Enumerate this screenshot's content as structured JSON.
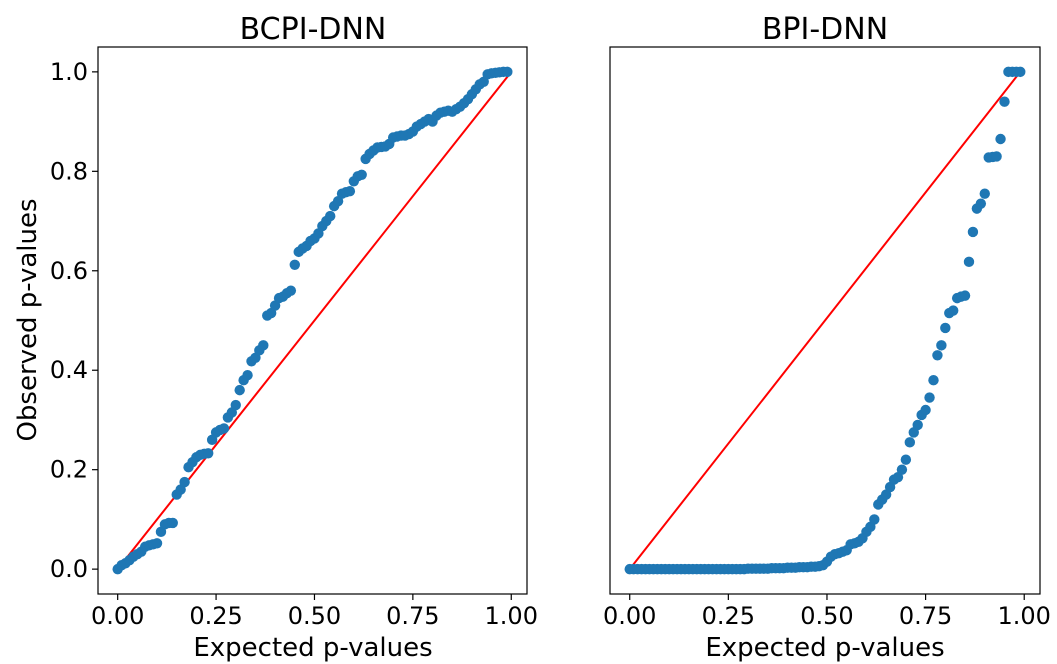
{
  "chart_data": [
    {
      "type": "scatter",
      "title": "BCPI-DNN",
      "xlabel": "Expected p-values",
      "ylabel": "Observed p-values",
      "xlim": [
        -0.05,
        1.04
      ],
      "ylim": [
        -0.05,
        1.05
      ],
      "xticks": [
        "0.00",
        "0.25",
        "0.50",
        "0.75",
        "1.00"
      ],
      "yticks": [
        "0.0",
        "0.2",
        "0.4",
        "0.6",
        "0.8",
        "1.0"
      ],
      "colors": {
        "points": "#1f77b4",
        "reference_line": "#ff0000"
      },
      "reference_line": {
        "x": [
          0,
          1
        ],
        "y": [
          0,
          1
        ]
      },
      "series": [
        {
          "x": [
            0.0,
            0.01,
            0.02,
            0.03,
            0.04,
            0.05,
            0.06,
            0.07,
            0.08,
            0.09,
            0.1,
            0.11,
            0.12,
            0.13,
            0.14,
            0.15,
            0.16,
            0.17,
            0.18,
            0.19,
            0.2,
            0.21,
            0.22,
            0.23,
            0.24,
            0.25,
            0.26,
            0.27,
            0.28,
            0.29,
            0.3,
            0.31,
            0.32,
            0.33,
            0.34,
            0.35,
            0.36,
            0.37,
            0.38,
            0.39,
            0.4,
            0.41,
            0.42,
            0.43,
            0.44,
            0.45,
            0.46,
            0.47,
            0.48,
            0.49,
            0.5,
            0.51,
            0.52,
            0.53,
            0.54,
            0.55,
            0.56,
            0.57,
            0.58,
            0.59,
            0.6,
            0.61,
            0.62,
            0.63,
            0.64,
            0.65,
            0.66,
            0.67,
            0.68,
            0.69,
            0.7,
            0.71,
            0.72,
            0.73,
            0.74,
            0.75,
            0.76,
            0.77,
            0.78,
            0.79,
            0.8,
            0.81,
            0.82,
            0.83,
            0.84,
            0.85,
            0.86,
            0.87,
            0.88,
            0.89,
            0.9,
            0.91,
            0.92,
            0.93,
            0.94,
            0.95,
            0.96,
            0.97,
            0.98,
            0.99
          ],
          "y": [
            0.0,
            0.008,
            0.012,
            0.018,
            0.025,
            0.03,
            0.035,
            0.045,
            0.048,
            0.05,
            0.052,
            0.075,
            0.09,
            0.093,
            0.093,
            0.15,
            0.16,
            0.175,
            0.205,
            0.215,
            0.225,
            0.23,
            0.232,
            0.233,
            0.26,
            0.275,
            0.28,
            0.283,
            0.305,
            0.315,
            0.33,
            0.36,
            0.38,
            0.39,
            0.418,
            0.425,
            0.44,
            0.45,
            0.51,
            0.515,
            0.53,
            0.545,
            0.548,
            0.555,
            0.56,
            0.612,
            0.638,
            0.645,
            0.65,
            0.66,
            0.665,
            0.675,
            0.69,
            0.7,
            0.71,
            0.73,
            0.74,
            0.755,
            0.758,
            0.76,
            0.78,
            0.79,
            0.793,
            0.825,
            0.835,
            0.842,
            0.848,
            0.849,
            0.85,
            0.855,
            0.868,
            0.87,
            0.872,
            0.872,
            0.875,
            0.88,
            0.89,
            0.895,
            0.9,
            0.905,
            0.9,
            0.912,
            0.918,
            0.92,
            0.922,
            0.92,
            0.925,
            0.93,
            0.937,
            0.945,
            0.955,
            0.965,
            0.975,
            0.98,
            0.995,
            0.997,
            0.998,
            0.999,
            1.0,
            1.0
          ]
        }
      ]
    },
    {
      "type": "scatter",
      "title": "BPI-DNN",
      "xlabel": "Expected p-values",
      "ylabel": "",
      "xlim": [
        -0.05,
        1.04
      ],
      "ylim": [
        -0.05,
        1.05
      ],
      "xticks": [
        "0.00",
        "0.25",
        "0.50",
        "0.75",
        "1.00"
      ],
      "yticks": [],
      "colors": {
        "points": "#1f77b4",
        "reference_line": "#ff0000"
      },
      "reference_line": {
        "x": [
          0,
          0.99
        ],
        "y": [
          0,
          1.0
        ]
      },
      "series": [
        {
          "x": [
            0.0,
            0.01,
            0.02,
            0.03,
            0.04,
            0.05,
            0.06,
            0.07,
            0.08,
            0.09,
            0.1,
            0.11,
            0.12,
            0.13,
            0.14,
            0.15,
            0.16,
            0.17,
            0.18,
            0.19,
            0.2,
            0.21,
            0.22,
            0.23,
            0.24,
            0.25,
            0.26,
            0.27,
            0.28,
            0.29,
            0.3,
            0.31,
            0.32,
            0.33,
            0.34,
            0.35,
            0.36,
            0.37,
            0.38,
            0.39,
            0.4,
            0.41,
            0.42,
            0.43,
            0.44,
            0.45,
            0.46,
            0.47,
            0.48,
            0.49,
            0.5,
            0.51,
            0.52,
            0.53,
            0.54,
            0.55,
            0.56,
            0.57,
            0.58,
            0.59,
            0.6,
            0.61,
            0.62,
            0.63,
            0.64,
            0.65,
            0.66,
            0.67,
            0.68,
            0.69,
            0.7,
            0.71,
            0.72,
            0.73,
            0.74,
            0.75,
            0.76,
            0.77,
            0.78,
            0.79,
            0.8,
            0.81,
            0.82,
            0.83,
            0.84,
            0.85,
            0.86,
            0.87,
            0.88,
            0.89,
            0.9,
            0.91,
            0.92,
            0.93,
            0.94,
            0.95,
            0.96,
            0.97,
            0.98,
            0.99
          ],
          "y": [
            0.0,
            0.0,
            0.0,
            0.0,
            0.0,
            0.0,
            0.0,
            0.0,
            0.0,
            0.0,
            0.0,
            0.0,
            0.0,
            0.0,
            0.0,
            0.0,
            0.0,
            0.0,
            0.0,
            0.0,
            0.0,
            0.0,
            0.0,
            0.0,
            0.0,
            0.0,
            0.0,
            0.0,
            0.0,
            0.0,
            0.001,
            0.001,
            0.001,
            0.001,
            0.001,
            0.001,
            0.002,
            0.002,
            0.002,
            0.002,
            0.003,
            0.003,
            0.003,
            0.004,
            0.004,
            0.004,
            0.005,
            0.005,
            0.006,
            0.008,
            0.015,
            0.025,
            0.03,
            0.032,
            0.035,
            0.038,
            0.05,
            0.052,
            0.055,
            0.062,
            0.075,
            0.085,
            0.1,
            0.13,
            0.14,
            0.15,
            0.165,
            0.18,
            0.185,
            0.2,
            0.22,
            0.255,
            0.275,
            0.29,
            0.31,
            0.32,
            0.345,
            0.38,
            0.43,
            0.45,
            0.485,
            0.515,
            0.52,
            0.545,
            0.548,
            0.55,
            0.618,
            0.678,
            0.725,
            0.735,
            0.755,
            0.828,
            0.829,
            0.83,
            0.865,
            0.94,
            1.0,
            1.0,
            1.0,
            1.0
          ]
        }
      ]
    }
  ]
}
